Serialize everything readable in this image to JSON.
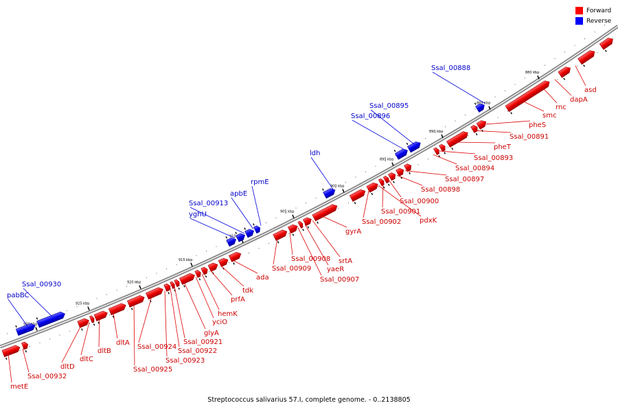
{
  "caption": "Streptococcus salivarius 57.I, complete genome. - 0..2138805",
  "legend": [
    {
      "label": "Forward",
      "color": "#ff0000"
    },
    {
      "label": "Reverse",
      "color": "#0000ff"
    }
  ],
  "colors": {
    "forward": "#ff0000",
    "reverse": "#0000ff",
    "backbone": "#888888"
  },
  "ticks": [
    "880 kbp",
    "885 kbp",
    "890 kbp",
    "895 kbp",
    "900 kbp",
    "905 kbp",
    "910 kbp",
    "915 kbp",
    "920 kbp",
    "925 kbp",
    "930 kbp"
  ],
  "genes": [
    {
      "name": "asd",
      "strand": "forward"
    },
    {
      "name": "dapA",
      "strand": "forward"
    },
    {
      "name": "rnc",
      "strand": "forward"
    },
    {
      "name": "smc",
      "strand": "forward"
    },
    {
      "name": "pheS",
      "strand": "forward"
    },
    {
      "name": "Ssal_00891",
      "strand": "forward"
    },
    {
      "name": "pheT",
      "strand": "forward"
    },
    {
      "name": "Ssal_00893",
      "strand": "forward"
    },
    {
      "name": "Ssal_00894",
      "strand": "forward"
    },
    {
      "name": "Ssal_00897",
      "strand": "forward"
    },
    {
      "name": "Ssal_00898",
      "strand": "forward"
    },
    {
      "name": "Ssal_00900",
      "strand": "forward"
    },
    {
      "name": "Ssal_00901",
      "strand": "forward"
    },
    {
      "name": "pdxK",
      "strand": "forward"
    },
    {
      "name": "Ssal_00902",
      "strand": "forward"
    },
    {
      "name": "gyrA",
      "strand": "forward"
    },
    {
      "name": "srtA",
      "strand": "forward"
    },
    {
      "name": "yaeR",
      "strand": "forward"
    },
    {
      "name": "Ssal_00907",
      "strand": "forward"
    },
    {
      "name": "Ssal_00908",
      "strand": "forward"
    },
    {
      "name": "Ssal_00909",
      "strand": "forward"
    },
    {
      "name": "ada",
      "strand": "forward"
    },
    {
      "name": "tdk",
      "strand": "forward"
    },
    {
      "name": "prfA",
      "strand": "forward"
    },
    {
      "name": "hemK",
      "strand": "forward"
    },
    {
      "name": "yciO",
      "strand": "forward"
    },
    {
      "name": "glyA",
      "strand": "forward"
    },
    {
      "name": "Ssal_00921",
      "strand": "forward"
    },
    {
      "name": "Ssal_00922",
      "strand": "forward"
    },
    {
      "name": "Ssal_00923",
      "strand": "forward"
    },
    {
      "name": "Ssal_00924",
      "strand": "forward"
    },
    {
      "name": "Ssal_00925",
      "strand": "forward"
    },
    {
      "name": "dltA",
      "strand": "forward"
    },
    {
      "name": "dltB",
      "strand": "forward"
    },
    {
      "name": "dltC",
      "strand": "forward"
    },
    {
      "name": "dltD",
      "strand": "forward"
    },
    {
      "name": "Ssal_00932",
      "strand": "forward"
    },
    {
      "name": "metE",
      "strand": "forward"
    },
    {
      "name": "Ssal_00888",
      "strand": "reverse"
    },
    {
      "name": "Ssal_00895",
      "strand": "reverse"
    },
    {
      "name": "Ssal_00896",
      "strand": "reverse"
    },
    {
      "name": "ldh",
      "strand": "reverse"
    },
    {
      "name": "rpmE",
      "strand": "reverse"
    },
    {
      "name": "apbE",
      "strand": "reverse"
    },
    {
      "name": "Ssal_00913",
      "strand": "reverse"
    },
    {
      "name": "yghU",
      "strand": "reverse"
    },
    {
      "name": "Ssal_00930",
      "strand": "reverse"
    },
    {
      "name": "pabBC",
      "strand": "reverse"
    }
  ]
}
